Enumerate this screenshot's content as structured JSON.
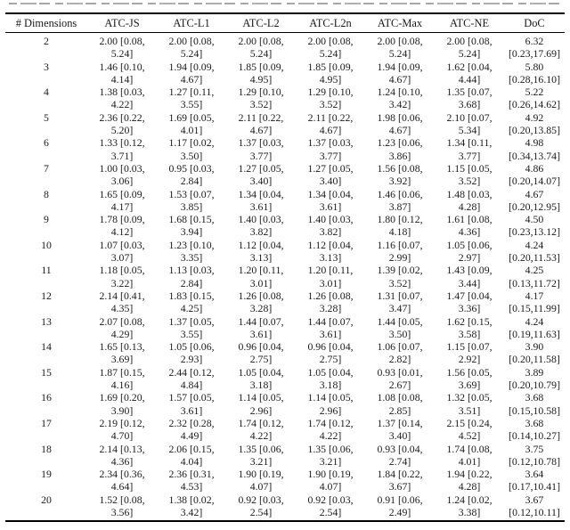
{
  "page": {
    "background": "#ffffff",
    "text_color": "#1a1a1a",
    "caption_clipped": true
  },
  "table": {
    "columns": [
      "# Dimensions",
      "ATC-JS",
      "ATC-L1",
      "ATC-L2",
      "ATC-L2n",
      "ATC-Max",
      "ATC-NE",
      "DoC"
    ],
    "rows": [
      {
        "dim": "2",
        "cells": [
          [
            "2.00 [0.08,",
            "5.24]"
          ],
          [
            "2.00 [0.08,",
            "5.24]"
          ],
          [
            "2.00 [0.08,",
            "5.24]"
          ],
          [
            "2.00 [0.08,",
            "5.24]"
          ],
          [
            "2.00 [0.08,",
            "5.24]"
          ],
          [
            "2.00 [0.08,",
            "5.24]"
          ],
          [
            "6.32",
            "[0.23,17.69]"
          ]
        ]
      },
      {
        "dim": "3",
        "cells": [
          [
            "1.46 [0.10,",
            "4.14]"
          ],
          [
            "1.94 [0.09,",
            "4.67]"
          ],
          [
            "1.85 [0.09,",
            "4.95]"
          ],
          [
            "1.85 [0.09,",
            "4.95]"
          ],
          [
            "1.94 [0.09,",
            "4.67]"
          ],
          [
            "1.62 [0.04,",
            "4.44]"
          ],
          [
            "5.80",
            "[0.28,16.10]"
          ]
        ]
      },
      {
        "dim": "4",
        "cells": [
          [
            "1.38 [0.03,",
            "4.22]"
          ],
          [
            "1.27 [0.11,",
            "3.55]"
          ],
          [
            "1.29 [0.10,",
            "3.52]"
          ],
          [
            "1.29 [0.10,",
            "3.52]"
          ],
          [
            "1.24 [0.10,",
            "3.42]"
          ],
          [
            "1.35 [0.07,",
            "3.68]"
          ],
          [
            "5.22",
            "[0.26,14.62]"
          ]
        ]
      },
      {
        "dim": "5",
        "cells": [
          [
            "2.36 [0.22,",
            "5.20]"
          ],
          [
            "1.69 [0.05,",
            "4.01]"
          ],
          [
            "2.11 [0.22,",
            "4.67]"
          ],
          [
            "2.11 [0.22,",
            "4.67]"
          ],
          [
            "1.98 [0.06,",
            "4.67]"
          ],
          [
            "2.10 [0.07,",
            "5.34]"
          ],
          [
            "4.92",
            "[0.20,13.85]"
          ]
        ]
      },
      {
        "dim": "6",
        "cells": [
          [
            "1.33 [0.12,",
            "3.71]"
          ],
          [
            "1.17 [0.02,",
            "3.50]"
          ],
          [
            "1.37 [0.03,",
            "3.77]"
          ],
          [
            "1.37 [0.03,",
            "3.77]"
          ],
          [
            "1.23 [0.06,",
            "3.86]"
          ],
          [
            "1.34 [0.11,",
            "3.77]"
          ],
          [
            "4.98",
            "[0.34,13.74]"
          ]
        ]
      },
      {
        "dim": "7",
        "cells": [
          [
            "1.00 [0.03,",
            "3.06]"
          ],
          [
            "0.95 [0.03,",
            "2.84]"
          ],
          [
            "1.27 [0.05,",
            "3.40]"
          ],
          [
            "1.27 [0.05,",
            "3.40]"
          ],
          [
            "1.56 [0.08,",
            "3.92]"
          ],
          [
            "1.15 [0.05,",
            "3.52]"
          ],
          [
            "4.86",
            "[0.20,14.07]"
          ]
        ]
      },
      {
        "dim": "8",
        "cells": [
          [
            "1.65 [0.09,",
            "4.17]"
          ],
          [
            "1.53 [0.07,",
            "3.85]"
          ],
          [
            "1.34 [0.04,",
            "3.61]"
          ],
          [
            "1.34 [0.04,",
            "3.61]"
          ],
          [
            "1.46 [0.06,",
            "3.87]"
          ],
          [
            "1.48 [0.03,",
            "4.28]"
          ],
          [
            "4.67",
            "[0.20,12.95]"
          ]
        ]
      },
      {
        "dim": "9",
        "cells": [
          [
            "1.78 [0.09,",
            "4.12]"
          ],
          [
            "1.68 [0.15,",
            "3.94]"
          ],
          [
            "1.40 [0.03,",
            "3.82]"
          ],
          [
            "1.40 [0.03,",
            "3.82]"
          ],
          [
            "1.80 [0.12,",
            "4.18]"
          ],
          [
            "1.61 [0.08,",
            "4.36]"
          ],
          [
            "4.50",
            "[0.23,13.12]"
          ]
        ]
      },
      {
        "dim": "10",
        "cells": [
          [
            "1.07 [0.03,",
            "3.07]"
          ],
          [
            "1.23 [0.10,",
            "3.35]"
          ],
          [
            "1.12 [0.04,",
            "3.13]"
          ],
          [
            "1.12 [0.04,",
            "3.13]"
          ],
          [
            "1.16 [0.07,",
            "2.99]"
          ],
          [
            "1.05 [0.06,",
            "2.97]"
          ],
          [
            "4.24",
            "[0.20,11.53]"
          ]
        ]
      },
      {
        "dim": "11",
        "cells": [
          [
            "1.18 [0.05,",
            "3.22]"
          ],
          [
            "1.13 [0.03,",
            "2.84]"
          ],
          [
            "1.20 [0.11,",
            "3.01]"
          ],
          [
            "1.20 [0.11,",
            "3.01]"
          ],
          [
            "1.39 [0.02,",
            "3.52]"
          ],
          [
            "1.43 [0.09,",
            "3.44]"
          ],
          [
            "4.25",
            "[0.13,11.72]"
          ]
        ]
      },
      {
        "dim": "12",
        "cells": [
          [
            "2.14 [0.41,",
            "4.35]"
          ],
          [
            "1.83 [0.15,",
            "4.25]"
          ],
          [
            "1.26 [0.08,",
            "3.28]"
          ],
          [
            "1.26 [0.08,",
            "3.28]"
          ],
          [
            "1.31 [0.07,",
            "3.47]"
          ],
          [
            "1.47 [0.04,",
            "3.36]"
          ],
          [
            "4.17",
            "[0.15,11.99]"
          ]
        ]
      },
      {
        "dim": "13",
        "cells": [
          [
            "2.07 [0.08,",
            "4.29]"
          ],
          [
            "1.37 [0.05,",
            "3.55]"
          ],
          [
            "1.44 [0.07,",
            "3.61]"
          ],
          [
            "1.44 [0.07,",
            "3.61]"
          ],
          [
            "1.44 [0.05,",
            "3.50]"
          ],
          [
            "1.62 [0.15,",
            "3.58]"
          ],
          [
            "4.24",
            "[0.19,11.63]"
          ]
        ]
      },
      {
        "dim": "14",
        "cells": [
          [
            "1.65 [0.13,",
            "3.69]"
          ],
          [
            "1.05 [0.06,",
            "2.93]"
          ],
          [
            "0.96 [0.04,",
            "2.75]"
          ],
          [
            "0.96 [0.04,",
            "2.75]"
          ],
          [
            "1.06 [0.07,",
            "2.82]"
          ],
          [
            "1.15 [0.07,",
            "2.92]"
          ],
          [
            "3.90",
            "[0.20,11.58]"
          ]
        ]
      },
      {
        "dim": "15",
        "cells": [
          [
            "1.87 [0.15,",
            "4.16]"
          ],
          [
            "2.44 [0.12,",
            "4.84]"
          ],
          [
            "1.05 [0.04,",
            "3.18]"
          ],
          [
            "1.05 [0.04,",
            "3.18]"
          ],
          [
            "0.93 [0.01,",
            "2.67]"
          ],
          [
            "1.56 [0.05,",
            "3.69]"
          ],
          [
            "3.89",
            "[0.20,10.79]"
          ]
        ]
      },
      {
        "dim": "16",
        "cells": [
          [
            "1.69 [0.20,",
            "3.90]"
          ],
          [
            "1.57 [0.05,",
            "3.61]"
          ],
          [
            "1.14 [0.05,",
            "2.96]"
          ],
          [
            "1.14 [0.05,",
            "2.96]"
          ],
          [
            "1.08 [0.08,",
            "2.85]"
          ],
          [
            "1.32 [0.05,",
            "3.51]"
          ],
          [
            "3.68",
            "[0.15,10.58]"
          ]
        ]
      },
      {
        "dim": "17",
        "cells": [
          [
            "2.19 [0.12,",
            "4.70]"
          ],
          [
            "2.32 [0.28,",
            "4.49]"
          ],
          [
            "1.74 [0.12,",
            "4.22]"
          ],
          [
            "1.74 [0.12,",
            "4.22]"
          ],
          [
            "1.37 [0.14,",
            "3.40]"
          ],
          [
            "2.15 [0.24,",
            "4.52]"
          ],
          [
            "3.68",
            "[0.14,10.27]"
          ]
        ]
      },
      {
        "dim": "18",
        "cells": [
          [
            "2.14 [0.13,",
            "4.36]"
          ],
          [
            "2.06 [0.15,",
            "4.04]"
          ],
          [
            "1.35 [0.06,",
            "3.21]"
          ],
          [
            "1.35 [0.06,",
            "3.21]"
          ],
          [
            "0.93 [0.04,",
            "2.74]"
          ],
          [
            "1.74 [0.08,",
            "4.01]"
          ],
          [
            "3.75",
            "[0.12,10.78]"
          ]
        ]
      },
      {
        "dim": "19",
        "cells": [
          [
            "2.34 [0.36,",
            "4.64]"
          ],
          [
            "2.36 [0.31,",
            "4.53]"
          ],
          [
            "1.90 [0.19,",
            "4.07]"
          ],
          [
            "1.90 [0.19,",
            "4.07]"
          ],
          [
            "1.84 [0.22,",
            "3.67]"
          ],
          [
            "1.94 [0.22,",
            "4.28]"
          ],
          [
            "3.64",
            "[0.17,10.41]"
          ]
        ]
      },
      {
        "dim": "20",
        "cells": [
          [
            "1.52 [0.08,",
            "3.56]"
          ],
          [
            "1.38 [0.02,",
            "3.42]"
          ],
          [
            "0.92 [0.03,",
            "2.54]"
          ],
          [
            "0.92 [0.03,",
            "2.54]"
          ],
          [
            "0.91 [0.06,",
            "2.49]"
          ],
          [
            "1.24 [0.02,",
            "3.38]"
          ],
          [
            "3.67",
            "[0.12,10.11]"
          ]
        ]
      }
    ]
  }
}
